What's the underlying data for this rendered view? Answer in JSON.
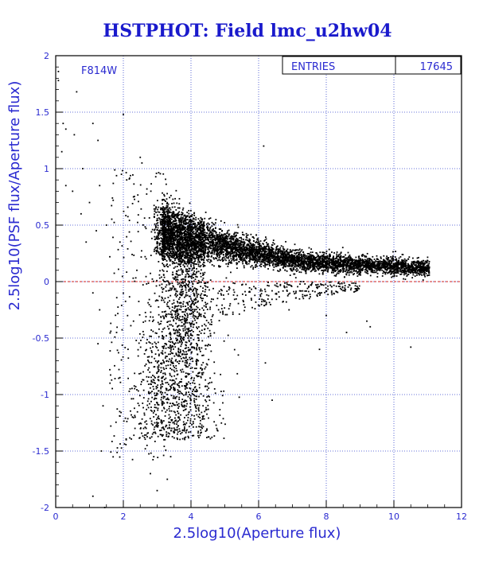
{
  "chart_data": {
    "type": "scatter",
    "title": "HSTPHOT: Field lmc_u2hw04",
    "xlabel": "2.5log10(Aperture flux)",
    "ylabel": "2.5log10(PSF flux/Aperture flux)",
    "xlim": [
      0,
      12
    ],
    "ylim": [
      -2,
      2
    ],
    "xticks": [
      0,
      2,
      4,
      6,
      8,
      10,
      12
    ],
    "yticks": [
      -2,
      -1.5,
      -1,
      -0.5,
      0,
      0.5,
      1,
      1.5,
      2
    ],
    "grid": true,
    "reference_line_y": 0,
    "filter_label": "F814W",
    "stats_box": {
      "label": "ENTRIES",
      "value": "17645"
    },
    "points": [
      [
        0.08,
        1.86
      ],
      [
        0.08,
        1.78
      ],
      [
        0.22,
        1.4
      ],
      [
        0.3,
        1.35
      ],
      [
        0.62,
        1.68
      ],
      [
        0.18,
        1.15
      ],
      [
        0.55,
        1.3
      ],
      [
        0.8,
        1.0
      ],
      [
        1.1,
        1.4
      ],
      [
        1.25,
        1.25
      ],
      [
        2.0,
        1.48
      ],
      [
        2.5,
        1.1
      ],
      [
        2.55,
        1.05
      ],
      [
        6.15,
        1.2
      ],
      [
        0.3,
        0.85
      ],
      [
        0.5,
        0.8
      ],
      [
        0.75,
        0.6
      ],
      [
        1.0,
        0.7
      ],
      [
        1.3,
        0.85
      ],
      [
        1.5,
        0.5
      ],
      [
        1.7,
        0.72
      ],
      [
        1.9,
        0.35
      ],
      [
        2.1,
        0.9
      ],
      [
        2.3,
        0.75
      ],
      [
        0.9,
        0.35
      ],
      [
        1.2,
        0.45
      ],
      [
        1.6,
        0.22
      ],
      [
        2.4,
        0.1
      ],
      [
        1.1,
        -0.1
      ],
      [
        1.3,
        -0.25
      ],
      [
        1.8,
        -0.45
      ],
      [
        2.3,
        -0.35
      ],
      [
        1.25,
        -0.55
      ],
      [
        1.6,
        -0.78
      ],
      [
        1.9,
        -0.85
      ],
      [
        2.2,
        -0.95
      ],
      [
        2.35,
        -1.2
      ],
      [
        2.6,
        -1.3
      ],
      [
        1.4,
        -1.1
      ],
      [
        1.35,
        -1.5
      ],
      [
        1.1,
        -1.9
      ],
      [
        1.45,
        -2.0
      ],
      [
        2.8,
        -1.7
      ],
      [
        3.0,
        -1.85
      ],
      [
        3.3,
        -1.75
      ],
      [
        3.4,
        -1.55
      ],
      [
        3.6,
        -1.35
      ],
      [
        3.2,
        -1.4
      ],
      [
        2.9,
        -1.55
      ],
      [
        2.7,
        -1.45
      ],
      [
        4.0,
        -1.05
      ],
      [
        4.3,
        -0.85
      ],
      [
        4.7,
        -0.95
      ],
      [
        6.4,
        -1.05
      ],
      [
        6.2,
        -0.72
      ],
      [
        5.4,
        -0.65
      ],
      [
        7.8,
        -0.6
      ],
      [
        8.6,
        -0.45
      ],
      [
        9.2,
        -0.35
      ],
      [
        9.3,
        -0.4
      ],
      [
        10.5,
        -0.58
      ],
      [
        8.0,
        -0.3
      ],
      [
        6.9,
        -0.25
      ],
      [
        7.5,
        -0.15
      ]
    ]
  }
}
